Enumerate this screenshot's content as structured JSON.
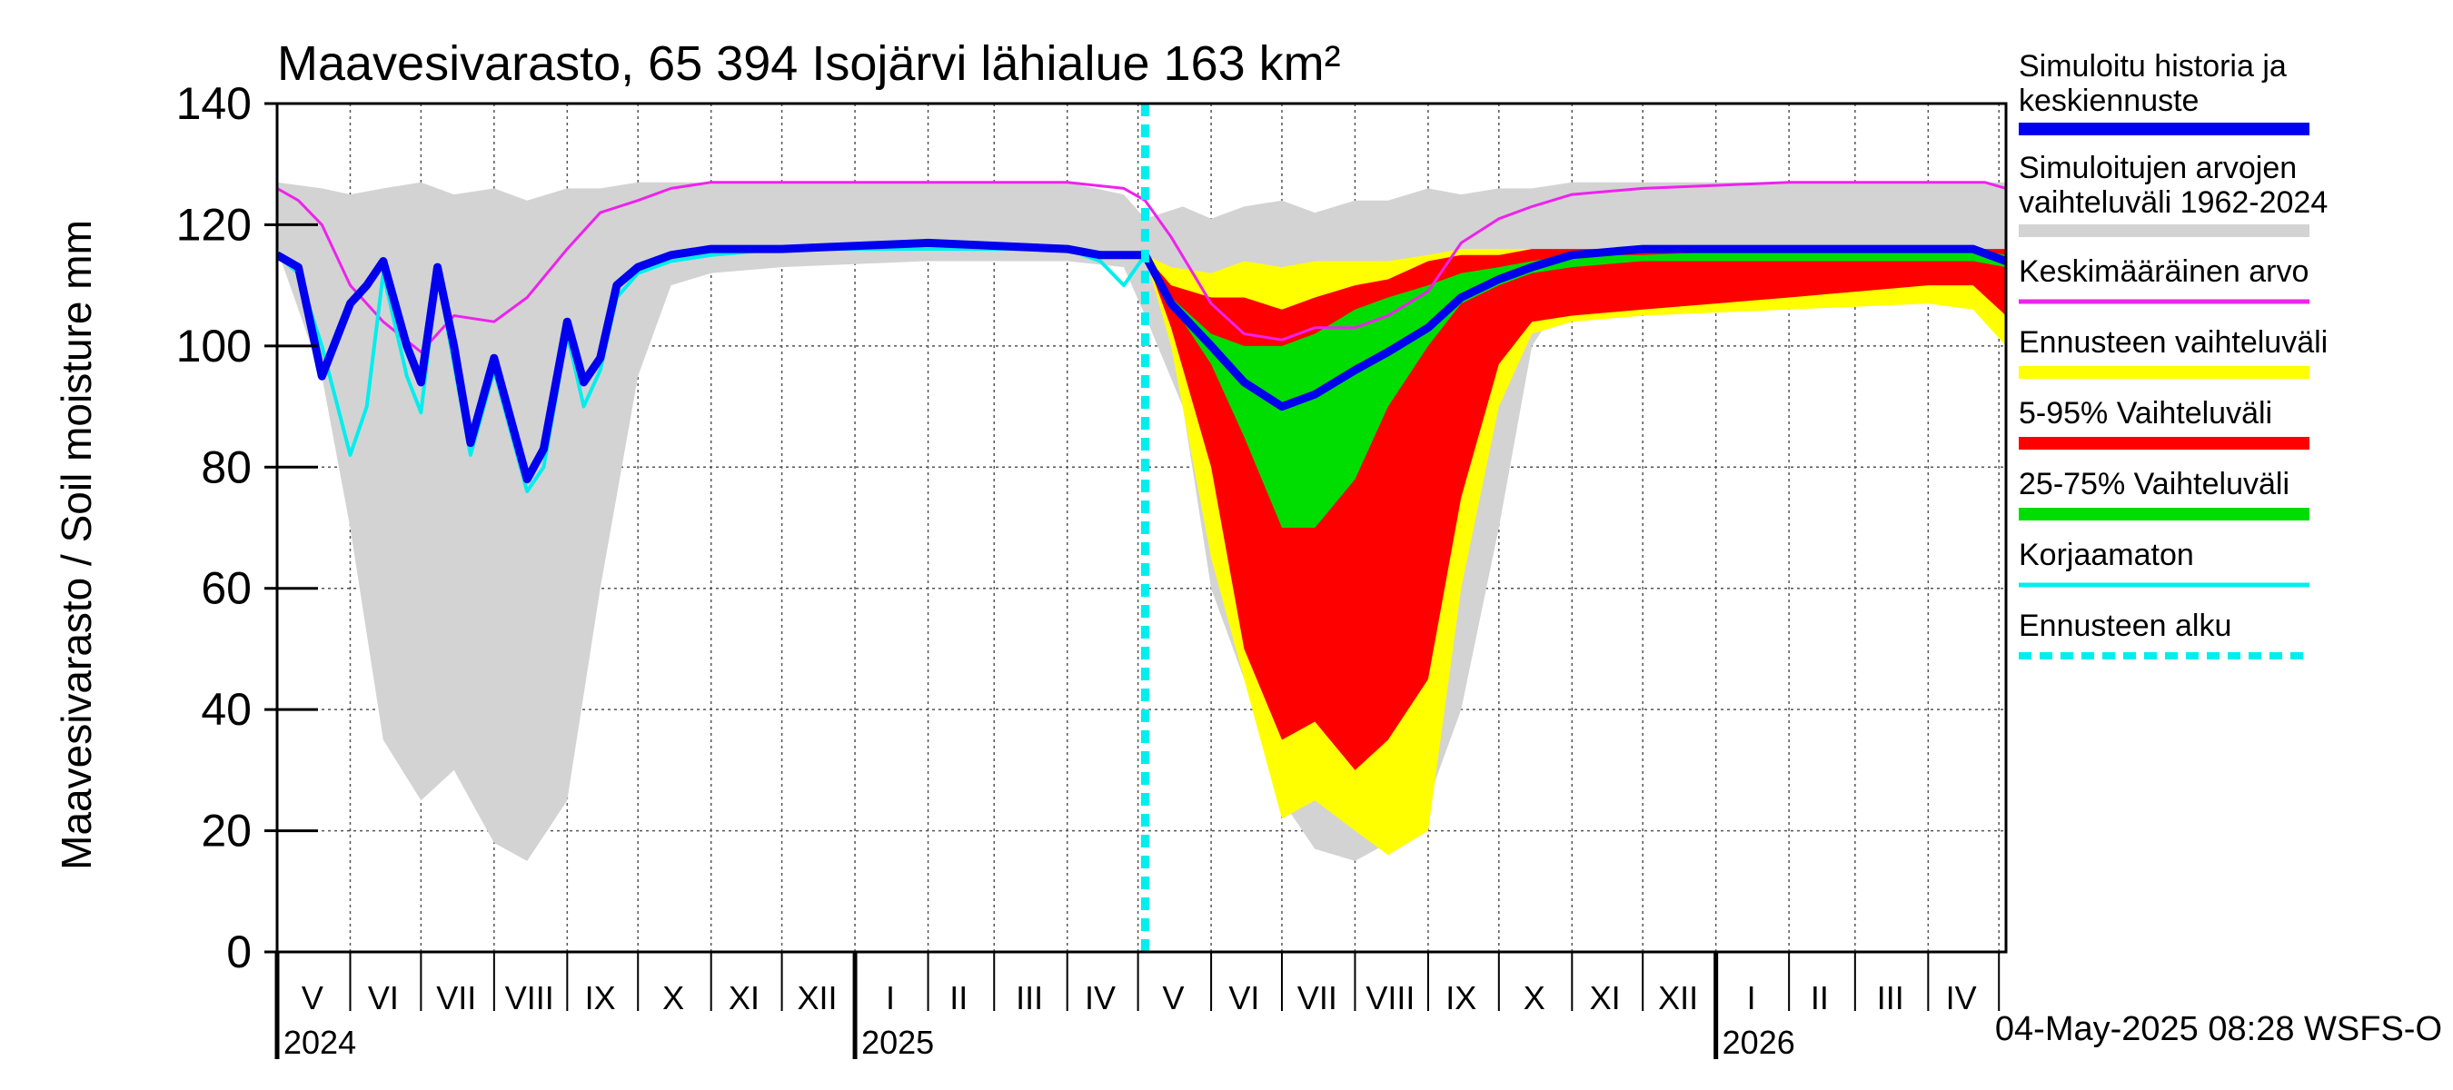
{
  "chart_data": {
    "type": "area",
    "title": "Maavesivarasto, 65 394 Isojärvi lähialue 163 km²",
    "ylabel": "Maavesivarasto / Soil moisture   mm",
    "xlabel": "",
    "ylim": [
      0,
      140
    ],
    "yticks": [
      0,
      20,
      40,
      60,
      80,
      100,
      120,
      140
    ],
    "xlim": [
      "2024-05-01",
      "2026-05-04"
    ],
    "grid": true,
    "forecast_start": "2025-05-04",
    "timestamp": "04-May-2025 08:28 WSFS-O",
    "month_labels": [
      {
        "label": "V",
        "date": "2024-05-16"
      },
      {
        "label": "VI",
        "date": "2024-06-15"
      },
      {
        "label": "VII",
        "date": "2024-07-16"
      },
      {
        "label": "VIII",
        "date": "2024-08-16"
      },
      {
        "label": "IX",
        "date": "2024-09-15"
      },
      {
        "label": "X",
        "date": "2024-10-16"
      },
      {
        "label": "XI",
        "date": "2024-11-15"
      },
      {
        "label": "XII",
        "date": "2024-12-16"
      },
      {
        "label": "I",
        "date": "2025-01-16"
      },
      {
        "label": "II",
        "date": "2025-02-14"
      },
      {
        "label": "III",
        "date": "2025-03-16"
      },
      {
        "label": "IV",
        "date": "2025-04-15"
      },
      {
        "label": "V",
        "date": "2025-05-16"
      },
      {
        "label": "VI",
        "date": "2025-06-15"
      },
      {
        "label": "VII",
        "date": "2025-07-16"
      },
      {
        "label": "VIII",
        "date": "2025-08-16"
      },
      {
        "label": "IX",
        "date": "2025-09-15"
      },
      {
        "label": "X",
        "date": "2025-10-16"
      },
      {
        "label": "XI",
        "date": "2025-11-15"
      },
      {
        "label": "XII",
        "date": "2025-12-16"
      },
      {
        "label": "I",
        "date": "2026-01-16"
      },
      {
        "label": "II",
        "date": "2026-02-14"
      },
      {
        "label": "III",
        "date": "2026-03-16"
      },
      {
        "label": "IV",
        "date": "2026-04-15"
      }
    ],
    "month_boundaries": [
      "2024-06-01",
      "2024-07-01",
      "2024-08-01",
      "2024-09-01",
      "2024-10-01",
      "2024-11-01",
      "2024-12-01",
      "2025-01-01",
      "2025-02-01",
      "2025-03-01",
      "2025-04-01",
      "2025-05-01",
      "2025-06-01",
      "2025-07-01",
      "2025-08-01",
      "2025-09-01",
      "2025-10-01",
      "2025-11-01",
      "2025-12-01",
      "2026-01-01",
      "2026-02-01",
      "2026-03-01",
      "2026-04-01",
      "2026-05-01"
    ],
    "year_labels": [
      {
        "label": "2024",
        "date": "2024-05-01"
      },
      {
        "label": "2025",
        "date": "2025-01-01"
      },
      {
        "label": "2026",
        "date": "2026-01-01"
      }
    ],
    "legend": [
      {
        "label": "Simuloitu historia ja keskiennuste",
        "color": "#0000ee",
        "style": "thick"
      },
      {
        "label": "Simuloitujen arvojen vaihteluväli 1962-2024",
        "color": "#d3d3d3",
        "style": "thick"
      },
      {
        "label": "Keskimääräinen arvo",
        "color": "#ee22ee",
        "style": "thin"
      },
      {
        "label": "Ennusteen vaihteluväli",
        "color": "#ffff00",
        "style": "thick"
      },
      {
        "label": "5-95% Vaihteluväli",
        "color": "#ff0000",
        "style": "thick"
      },
      {
        "label": "25-75% Vaihteluväli",
        "color": "#00dd00",
        "style": "thick"
      },
      {
        "label": "Korjaamaton",
        "color": "#00eeee",
        "style": "thin"
      },
      {
        "label": "Ennusteen alku",
        "color": "#00eeee",
        "style": "dashed"
      }
    ],
    "series": [
      {
        "name": "Simuloitujen arvojen vaihteluväli 1962-2024",
        "kind": "band",
        "color": "#d3d3d3",
        "x": [
          "2024-05-01",
          "2024-05-20",
          "2024-06-01",
          "2024-06-15",
          "2024-07-01",
          "2024-07-15",
          "2024-08-01",
          "2024-08-15",
          "2024-09-01",
          "2024-09-15",
          "2024-10-01",
          "2024-10-15",
          "2024-11-01",
          "2024-12-01",
          "2025-02-01",
          "2025-04-01",
          "2025-04-25",
          "2025-05-04",
          "2025-05-20",
          "2025-06-01",
          "2025-06-15",
          "2025-07-01",
          "2025-07-15",
          "2025-08-01",
          "2025-08-15",
          "2025-09-01",
          "2025-09-15",
          "2025-10-01",
          "2025-10-15",
          "2025-11-01",
          "2025-12-01",
          "2026-02-01",
          "2026-04-01",
          "2026-05-04"
        ],
        "upper": [
          127,
          126,
          125,
          126,
          127,
          125,
          126,
          124,
          126,
          126,
          127,
          127,
          127,
          127,
          127,
          127,
          125,
          121,
          123,
          121,
          123,
          124,
          122,
          124,
          124,
          126,
          125,
          126,
          126,
          127,
          127,
          127,
          127,
          127
        ],
        "lower": [
          116,
          95,
          70,
          35,
          25,
          30,
          18,
          15,
          25,
          60,
          95,
          110,
          112,
          113,
          114,
          114,
          113,
          105,
          90,
          60,
          45,
          25,
          17,
          15,
          18,
          25,
          40,
          70,
          100,
          110,
          112,
          113,
          113,
          114
        ]
      },
      {
        "name": "Ennusteen vaihteluväli",
        "kind": "band",
        "color": "#ffff00",
        "x": [
          "2025-05-04",
          "2025-05-15",
          "2025-06-01",
          "2025-06-15",
          "2025-07-01",
          "2025-07-15",
          "2025-08-01",
          "2025-08-15",
          "2025-09-01",
          "2025-09-15",
          "2025-10-01",
          "2025-10-15",
          "2025-11-01",
          "2025-12-01",
          "2026-02-01",
          "2026-04-01",
          "2026-04-20",
          "2026-05-04"
        ],
        "upper": [
          115,
          113,
          112,
          114,
          113,
          114,
          114,
          114,
          115,
          116,
          116,
          116,
          116,
          116,
          116,
          116,
          116,
          116
        ],
        "lower": [
          115,
          100,
          65,
          45,
          22,
          25,
          20,
          16,
          20,
          60,
          90,
          102,
          104,
          105,
          106,
          107,
          106,
          100
        ]
      },
      {
        "name": "5-95% Vaihteluväli",
        "kind": "band",
        "color": "#ff0000",
        "x": [
          "2025-05-04",
          "2025-05-15",
          "2025-06-01",
          "2025-06-15",
          "2025-07-01",
          "2025-07-15",
          "2025-08-01",
          "2025-08-15",
          "2025-09-01",
          "2025-09-15",
          "2025-10-01",
          "2025-10-15",
          "2025-11-01",
          "2025-12-01",
          "2026-02-01",
          "2026-04-01",
          "2026-04-20",
          "2026-05-04"
        ],
        "upper": [
          115,
          110,
          108,
          108,
          106,
          108,
          110,
          111,
          114,
          115,
          115,
          116,
          116,
          116,
          116,
          116,
          116,
          116
        ],
        "lower": [
          115,
          103,
          80,
          50,
          35,
          38,
          30,
          35,
          45,
          75,
          97,
          104,
          105,
          106,
          108,
          110,
          110,
          105
        ]
      },
      {
        "name": "25-75% Vaihteluväli",
        "kind": "band",
        "color": "#00dd00",
        "x": [
          "2025-05-04",
          "2025-05-15",
          "2025-06-01",
          "2025-06-15",
          "2025-07-01",
          "2025-07-15",
          "2025-08-01",
          "2025-08-15",
          "2025-09-01",
          "2025-09-15",
          "2025-10-01",
          "2025-10-15",
          "2025-11-01",
          "2025-12-01",
          "2026-02-01",
          "2026-04-01",
          "2026-04-20",
          "2026-05-04"
        ],
        "upper": [
          115,
          108,
          102,
          100,
          100,
          102,
          106,
          108,
          110,
          112,
          113,
          114,
          115,
          115,
          116,
          116,
          116,
          115
        ],
        "lower": [
          115,
          107,
          97,
          85,
          70,
          70,
          78,
          90,
          100,
          107,
          110,
          112,
          113,
          114,
          114,
          114,
          114,
          113
        ]
      },
      {
        "name": "Keskimääräinen arvo",
        "kind": "line",
        "color": "#ee22ee",
        "width": 3,
        "x": [
          "2024-05-01",
          "2024-05-10",
          "2024-05-20",
          "2024-06-01",
          "2024-06-15",
          "2024-07-01",
          "2024-07-15",
          "2024-08-01",
          "2024-08-15",
          "2024-09-01",
          "2024-09-15",
          "2024-10-01",
          "2024-10-15",
          "2024-11-01",
          "2024-12-01",
          "2025-02-01",
          "2025-04-01",
          "2025-04-25",
          "2025-05-04",
          "2025-05-15",
          "2025-06-01",
          "2025-06-15",
          "2025-07-01",
          "2025-07-15",
          "2025-08-01",
          "2025-08-15",
          "2025-09-01",
          "2025-09-15",
          "2025-10-01",
          "2025-10-15",
          "2025-11-01",
          "2025-12-01",
          "2026-02-01",
          "2026-04-01",
          "2026-04-25",
          "2026-05-04"
        ],
        "y": [
          126,
          124,
          120,
          110,
          104,
          99,
          105,
          104,
          108,
          116,
          122,
          124,
          126,
          127,
          127,
          127,
          127,
          126,
          124,
          118,
          107,
          102,
          101,
          103,
          103,
          105,
          109,
          117,
          121,
          123,
          125,
          126,
          127,
          127,
          127,
          126
        ]
      },
      {
        "name": "Korjaamaton",
        "kind": "line",
        "color": "#00eeee",
        "width": 4,
        "x": [
          "2024-05-01",
          "2024-05-10",
          "2024-05-20",
          "2024-06-01",
          "2024-06-08",
          "2024-06-15",
          "2024-06-25",
          "2024-07-01",
          "2024-07-08",
          "2024-07-15",
          "2024-07-22",
          "2024-08-01",
          "2024-08-08",
          "2024-08-15",
          "2024-08-22",
          "2024-09-01",
          "2024-09-08",
          "2024-09-15",
          "2024-09-22",
          "2024-10-01",
          "2024-10-15",
          "2024-11-01",
          "2024-12-01",
          "2025-02-01",
          "2025-04-01",
          "2025-04-15",
          "2025-04-25",
          "2025-05-04"
        ],
        "y": [
          115,
          112,
          100,
          82,
          90,
          112,
          95,
          89,
          112,
          97,
          82,
          96,
          86,
          76,
          80,
          102,
          90,
          96,
          108,
          112,
          114,
          115,
          116,
          116,
          116,
          114,
          110,
          115
        ]
      },
      {
        "name": "Simuloitu historia ja keskiennuste",
        "kind": "line",
        "color": "#0000ee",
        "width": 9,
        "x": [
          "2024-05-01",
          "2024-05-10",
          "2024-05-20",
          "2024-06-01",
          "2024-06-08",
          "2024-06-15",
          "2024-06-25",
          "2024-07-01",
          "2024-07-08",
          "2024-07-15",
          "2024-07-22",
          "2024-08-01",
          "2024-08-08",
          "2024-08-15",
          "2024-08-22",
          "2024-09-01",
          "2024-09-08",
          "2024-09-15",
          "2024-09-22",
          "2024-10-01",
          "2024-10-15",
          "2024-11-01",
          "2024-12-01",
          "2025-02-01",
          "2025-04-01",
          "2025-04-15",
          "2025-04-25",
          "2025-05-04",
          "2025-05-15",
          "2025-06-01",
          "2025-06-15",
          "2025-07-01",
          "2025-07-15",
          "2025-08-01",
          "2025-08-15",
          "2025-09-01",
          "2025-09-15",
          "2025-10-01",
          "2025-10-15",
          "2025-11-01",
          "2025-12-01",
          "2026-02-01",
          "2026-04-01",
          "2026-04-20",
          "2026-05-04"
        ],
        "y": [
          115,
          113,
          95,
          107,
          110,
          114,
          100,
          94,
          113,
          100,
          84,
          98,
          88,
          78,
          83,
          104,
          94,
          98,
          110,
          113,
          115,
          116,
          116,
          117,
          116,
          115,
          115,
          115,
          107,
          100,
          94,
          90,
          92,
          96,
          99,
          103,
          108,
          111,
          113,
          115,
          116,
          116,
          116,
          116,
          114
        ]
      },
      {
        "name": "Ennusteen alku",
        "kind": "vline",
        "color": "#00eeee",
        "x": "2025-05-04"
      }
    ]
  }
}
